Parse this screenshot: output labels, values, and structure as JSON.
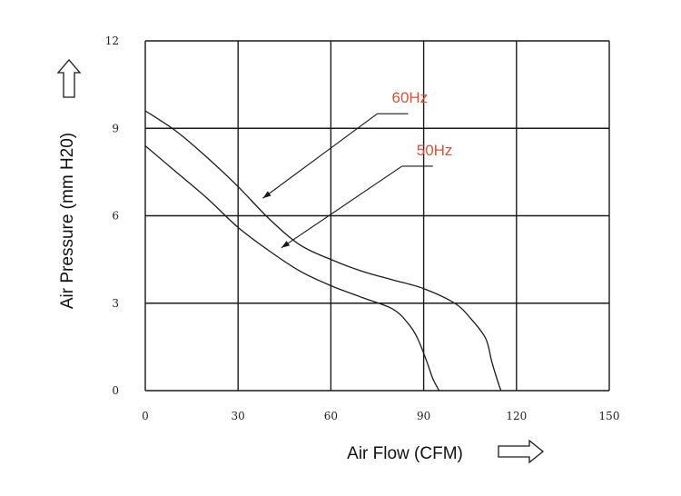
{
  "chart_data": {
    "type": "line",
    "xlabel": "Air Flow (CFM)",
    "ylabel": "Air Pressure (mm H20)",
    "xlim": [
      0,
      150
    ],
    "ylim": [
      0,
      12
    ],
    "x_ticks": [
      "0",
      "30",
      "60",
      "90",
      "120",
      "150"
    ],
    "y_ticks": [
      "0",
      "3",
      "6",
      "9",
      "12"
    ],
    "grid": true,
    "series": [
      {
        "name": "60Hz",
        "x": [
          0,
          10,
          20,
          30,
          40,
          50,
          60,
          70,
          80,
          90,
          100,
          105,
          110,
          112,
          114,
          115
        ],
        "y": [
          9.6,
          8.9,
          8.0,
          7.0,
          5.9,
          5.0,
          4.5,
          4.1,
          3.8,
          3.5,
          3.0,
          2.5,
          1.8,
          1.0,
          0.3,
          0
        ]
      },
      {
        "name": "50Hz",
        "x": [
          0,
          10,
          20,
          30,
          40,
          50,
          60,
          70,
          80,
          85,
          88,
          91,
          93,
          95
        ],
        "y": [
          8.4,
          7.5,
          6.6,
          5.6,
          4.8,
          4.1,
          3.6,
          3.2,
          2.8,
          2.3,
          1.8,
          1.0,
          0.4,
          0
        ]
      }
    ],
    "annotations": [
      {
        "text": "60Hz",
        "series": "60Hz",
        "label_at": [
          75,
          9.5
        ],
        "arrow_to": [
          38,
          6.6
        ]
      },
      {
        "text": "50Hz",
        "series": "50Hz",
        "label_at": [
          83,
          7.7
        ],
        "arrow_to": [
          44,
          4.9
        ]
      }
    ]
  }
}
